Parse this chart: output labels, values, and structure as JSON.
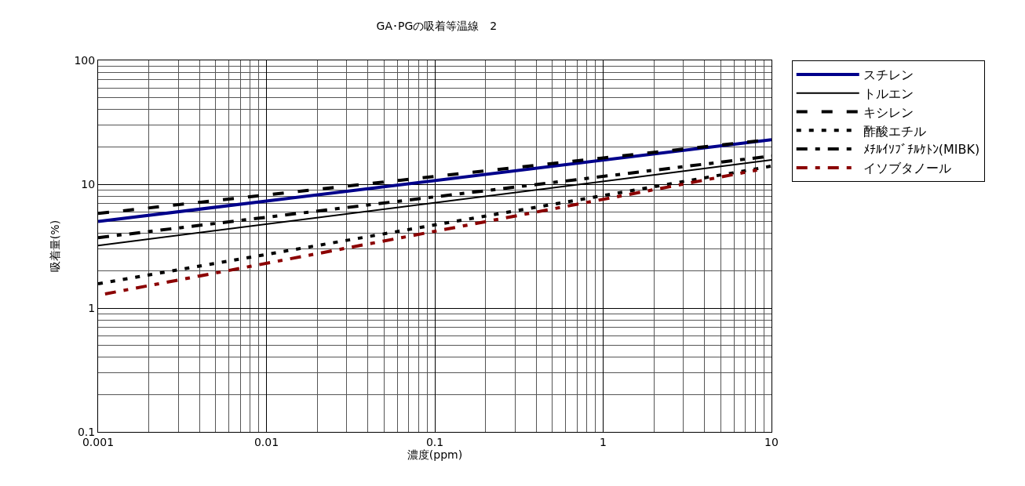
{
  "chart_data": {
    "type": "line",
    "title": "GA･PGの吸着等温線　2",
    "xlabel": "濃度(ppm)",
    "ylabel": "吸着量(%)",
    "log": "xy",
    "grid": true,
    "legend": "top right",
    "marker": "none",
    "xlim": [
      0.001,
      10
    ],
    "xticks": [
      0.001,
      0.01,
      0.1,
      1,
      10
    ],
    "ylim": [
      0.1,
      100
    ],
    "yticks": [
      0.1,
      1,
      10,
      100
    ],
    "series": [
      {
        "name": "スチレン",
        "color": "#00008b",
        "line_style": "solid",
        "x": [
          0.001,
          10
        ],
        "values": [
          5.0,
          22.9
        ]
      },
      {
        "name": "トルエン",
        "color": "#000000",
        "line_style": "solid",
        "x": [
          0.001,
          10
        ],
        "values": [
          3.2,
          15.7
        ]
      },
      {
        "name": "キシレン",
        "color": "#000000",
        "line_style": "dashed",
        "x": [
          0.001,
          10
        ],
        "values": [
          5.8,
          23
        ]
      },
      {
        "name": "酢酸エチル",
        "color": "#000000",
        "line_style": "dotted",
        "x": [
          0.001,
          10
        ],
        "values": [
          1.57,
          14
        ]
      },
      {
        "name": "ﾒﾁﾙｲｿﾌﾞﾁﾙｹﾄﾝ(MIBK)",
        "color": "#000000",
        "line_style": "dashdot",
        "x": [
          0.001,
          10
        ],
        "values": [
          3.7,
          16.9
        ]
      },
      {
        "name": "イソブタノール",
        "color": "#8b0000",
        "line_style": "dashdot",
        "x": [
          0.0011,
          8.2
        ],
        "values": [
          1.3,
          13
        ]
      }
    ]
  }
}
